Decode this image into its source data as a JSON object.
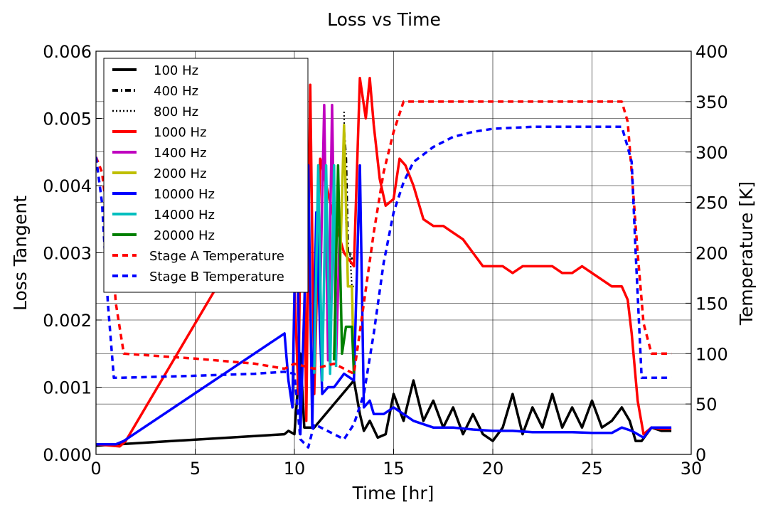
{
  "chart_data": {
    "type": "line",
    "title": "Loss vs Time",
    "xlabel": "Time [hr]",
    "ylabel": "Loss Tangent",
    "y2label": "Temperature [K]",
    "xlim": [
      0,
      30
    ],
    "ylim": [
      0,
      0.006
    ],
    "y2lim": [
      0,
      400
    ],
    "grid": true,
    "legend_position": "upper-left",
    "x_ticks": [
      "0",
      "5",
      "10",
      "15",
      "20",
      "25",
      "30"
    ],
    "y_ticks": [
      "0.000",
      "0.001",
      "0.002",
      "0.003",
      "0.004",
      "0.005",
      "0.006"
    ],
    "y2_ticks": [
      "0",
      "50",
      "100",
      "150",
      "200",
      "250",
      "300",
      "350",
      "400"
    ],
    "series": [
      {
        "name": "100 Hz",
        "color": "#000000",
        "style": "solid",
        "axis": "left",
        "x": [
          0,
          9.5,
          9.7,
          10.0,
          10.3,
          10.5,
          10.7,
          11.0,
          13.0,
          13.3,
          13.5,
          13.8,
          14.2,
          14.6,
          15.0,
          15.5,
          16.0,
          16.5,
          17.0,
          17.5,
          18.0,
          18.5,
          19.0,
          19.5,
          20.0,
          20.5,
          21.0,
          21.5,
          22.0,
          22.5,
          23.0,
          23.5,
          24.0,
          24.5,
          25.0,
          25.5,
          26.0,
          26.5,
          26.9,
          27.2,
          27.5,
          28.0,
          28.5,
          29.0
        ],
        "y": [
          0.00013,
          0.0003,
          0.00035,
          0.0003,
          0.0015,
          0.0004,
          0.0004,
          0.0004,
          0.0011,
          0.0006,
          0.00035,
          0.0005,
          0.00025,
          0.0003,
          0.0009,
          0.0005,
          0.0011,
          0.0005,
          0.0008,
          0.0004,
          0.0007,
          0.0003,
          0.0006,
          0.0003,
          0.0002,
          0.0004,
          0.0009,
          0.0003,
          0.0007,
          0.0004,
          0.0009,
          0.0004,
          0.0007,
          0.0004,
          0.0008,
          0.0004,
          0.0005,
          0.0007,
          0.0005,
          0.0002,
          0.0002,
          0.0004,
          0.00035,
          0.00035
        ]
      },
      {
        "name": "400 Hz",
        "color": "#000000",
        "style": "dashdot",
        "axis": "left",
        "x": [
          12.5,
          12.6,
          12.7,
          12.8,
          12.9
        ],
        "y": [
          0.0048,
          0.0044,
          0.003,
          0.003,
          0.0029
        ]
      },
      {
        "name": "800 Hz",
        "color": "#000000",
        "style": "dotted",
        "axis": "left",
        "x": [
          12.5,
          12.6,
          12.7,
          12.8,
          12.9,
          13.0
        ],
        "y": [
          0.0051,
          0.0034,
          0.003,
          0.003,
          0.0025,
          0.0025
        ]
      },
      {
        "name": "1000 Hz",
        "color": "#ff0000",
        "style": "solid",
        "axis": "left",
        "x": [
          0,
          1.2,
          1.5,
          6.5,
          9.8,
          10.2,
          10.4,
          10.6,
          10.8,
          11.0,
          11.3,
          12.0,
          12.5,
          13.0,
          13.3,
          13.6,
          13.8,
          14.0,
          14.3,
          14.6,
          15.0,
          15.3,
          15.6,
          16.0,
          16.5,
          17.0,
          17.5,
          18.0,
          18.5,
          19.0,
          19.5,
          20.0,
          20.5,
          21.0,
          21.5,
          22.0,
          22.5,
          23.0,
          23.5,
          24.0,
          24.5,
          25.0,
          25.5,
          26.0,
          26.5,
          26.8,
          27.0,
          27.3,
          27.6,
          28.0,
          28.5,
          29.0
        ],
        "y": [
          0.00015,
          0.00012,
          0.0002,
          0.0027,
          0.0042,
          0.0009,
          0.0056,
          0.0005,
          0.0055,
          0.0009,
          0.0044,
          0.0035,
          0.003,
          0.0028,
          0.0056,
          0.005,
          0.0056,
          0.0049,
          0.0041,
          0.0037,
          0.0038,
          0.0044,
          0.0043,
          0.004,
          0.0035,
          0.0034,
          0.0034,
          0.0033,
          0.0032,
          0.003,
          0.0028,
          0.0028,
          0.0028,
          0.0027,
          0.0028,
          0.0028,
          0.0028,
          0.0028,
          0.0027,
          0.0027,
          0.0028,
          0.0027,
          0.0026,
          0.0025,
          0.0025,
          0.0023,
          0.0018,
          0.0008,
          0.0003,
          0.0004,
          0.00038,
          0.00038
        ]
      },
      {
        "name": "1400 Hz",
        "color": "#bf00bf",
        "style": "solid",
        "axis": "left",
        "x": [
          11.3,
          11.5,
          11.7,
          11.9,
          12.1,
          12.3
        ],
        "y": [
          0.0024,
          0.0052,
          0.0014,
          0.0052,
          0.0014,
          0.0035
        ]
      },
      {
        "name": "2000 Hz",
        "color": "#bfbf00",
        "style": "solid",
        "axis": "left",
        "x": [
          12.3,
          12.5,
          12.7,
          12.9,
          13.0
        ],
        "y": [
          0.0028,
          0.0049,
          0.0025,
          0.0025,
          0.0012
        ]
      },
      {
        "name": "10000 Hz",
        "color": "#0000ff",
        "style": "solid",
        "axis": "left",
        "x": [
          0,
          1.0,
          1.4,
          9.5,
          9.7,
          9.9,
          10.1,
          10.3,
          10.5,
          10.7,
          10.9,
          11.1,
          11.4,
          11.7,
          12.0,
          12.5,
          13.0,
          13.3,
          13.5,
          13.8,
          14.0,
          14.5,
          15.0,
          15.5,
          16.0,
          17.0,
          18.0,
          19.0,
          20.0,
          21.0,
          22.0,
          23.0,
          24.0,
          25.0,
          26.0,
          26.5,
          27.0,
          27.3,
          27.6,
          28.0,
          29.0
        ],
        "y": [
          0.00015,
          0.00015,
          0.0002,
          0.0018,
          0.0011,
          0.0007,
          0.0041,
          0.0003,
          0.0022,
          0.0043,
          0.0004,
          0.0036,
          0.0009,
          0.001,
          0.001,
          0.0012,
          0.0011,
          0.0043,
          0.0007,
          0.0008,
          0.0006,
          0.0006,
          0.0007,
          0.0006,
          0.0005,
          0.0004,
          0.0004,
          0.00037,
          0.00035,
          0.00035,
          0.00033,
          0.00033,
          0.00033,
          0.00032,
          0.00032,
          0.0004,
          0.00035,
          0.0003,
          0.00025,
          0.0004,
          0.0004
        ]
      },
      {
        "name": "14000 Hz",
        "color": "#00bfbf",
        "style": "solid",
        "axis": "left",
        "x": [
          11.0,
          11.2,
          11.4,
          11.6,
          11.8,
          12.0,
          12.1
        ],
        "y": [
          0.0012,
          0.0043,
          0.0011,
          0.0043,
          0.0012,
          0.0043,
          0.0013
        ]
      },
      {
        "name": "20000 Hz",
        "color": "#008000",
        "style": "solid",
        "axis": "left",
        "x": [
          12.0,
          12.2,
          12.4,
          12.6,
          12.9,
          13.0
        ],
        "y": [
          0.0014,
          0.0043,
          0.0015,
          0.0019,
          0.0019,
          0.0012
        ]
      },
      {
        "name": "Stage A Temperature",
        "color": "#ff0000",
        "style": "dashed",
        "axis": "right",
        "x": [
          0,
          0.3,
          0.8,
          1.0,
          1.4,
          5.0,
          8.0,
          9.5,
          10.0,
          11.0,
          12.0,
          13.0,
          13.5,
          14.0,
          14.5,
          15.0,
          15.5,
          16.0,
          20.0,
          25.0,
          26.5,
          26.8,
          27.0,
          27.3,
          27.6,
          28.0,
          29.0
        ],
        "y": [
          295,
          280,
          200,
          150,
          100,
          95,
          90,
          85,
          90,
          85,
          90,
          80,
          150,
          220,
          280,
          320,
          350,
          350,
          350,
          350,
          350,
          330,
          280,
          200,
          130,
          100,
          100
        ]
      },
      {
        "name": "Stage B Temperature",
        "color": "#0000ff",
        "style": "dashed",
        "axis": "right",
        "x": [
          0,
          0.3,
          0.6,
          0.9,
          1.2,
          5.0,
          8.0,
          9.5,
          10.0,
          10.3,
          10.7,
          11.0,
          11.5,
          12.0,
          12.5,
          13.0,
          13.5,
          14.0,
          14.5,
          15.0,
          15.5,
          16.0,
          17.0,
          18.0,
          19.0,
          20.0,
          22.0,
          25.0,
          26.5,
          26.8,
          27.0,
          27.2,
          27.5,
          28.0,
          29.0
        ],
        "y": [
          295,
          250,
          150,
          76,
          76,
          78,
          80,
          82,
          80,
          15,
          7,
          30,
          25,
          20,
          15,
          30,
          60,
          120,
          190,
          240,
          270,
          290,
          305,
          315,
          320,
          323,
          325,
          325,
          325,
          305,
          290,
          200,
          76,
          76,
          76
        ]
      }
    ]
  }
}
